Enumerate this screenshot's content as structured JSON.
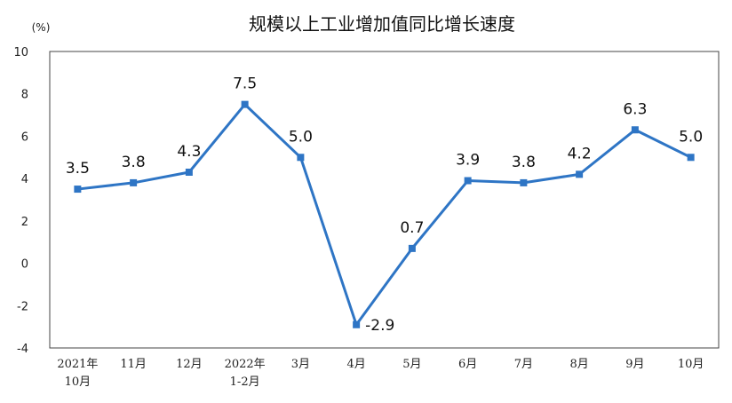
{
  "chart_data": {
    "type": "line",
    "title": "规模以上工业增加值同比增长速度",
    "unit_label": "(%)",
    "categories": [
      [
        "2021年",
        "10月"
      ],
      [
        "11月"
      ],
      [
        "12月"
      ],
      [
        "2022年",
        "1-2月"
      ],
      [
        "3月"
      ],
      [
        "4月"
      ],
      [
        "5月"
      ],
      [
        "6月"
      ],
      [
        "7月"
      ],
      [
        "8月"
      ],
      [
        "9月"
      ],
      [
        "10月"
      ]
    ],
    "series": [
      {
        "values": [
          3.5,
          3.8,
          4.3,
          7.5,
          5.0,
          -2.9,
          0.7,
          3.9,
          3.8,
          4.2,
          6.3,
          5.0
        ]
      }
    ],
    "data_labels": [
      "3.5",
      "3.8",
      "4.3",
      "7.5",
      "5.0",
      "-2.9",
      "0.7",
      "3.9",
      "3.8",
      "4.2",
      "6.3",
      "5.0"
    ],
    "yticks": [
      -4,
      -2,
      0,
      2,
      4,
      6,
      8,
      10
    ],
    "ylim": [
      -4,
      10
    ],
    "grid": false,
    "line_color": "#2e75c5"
  }
}
